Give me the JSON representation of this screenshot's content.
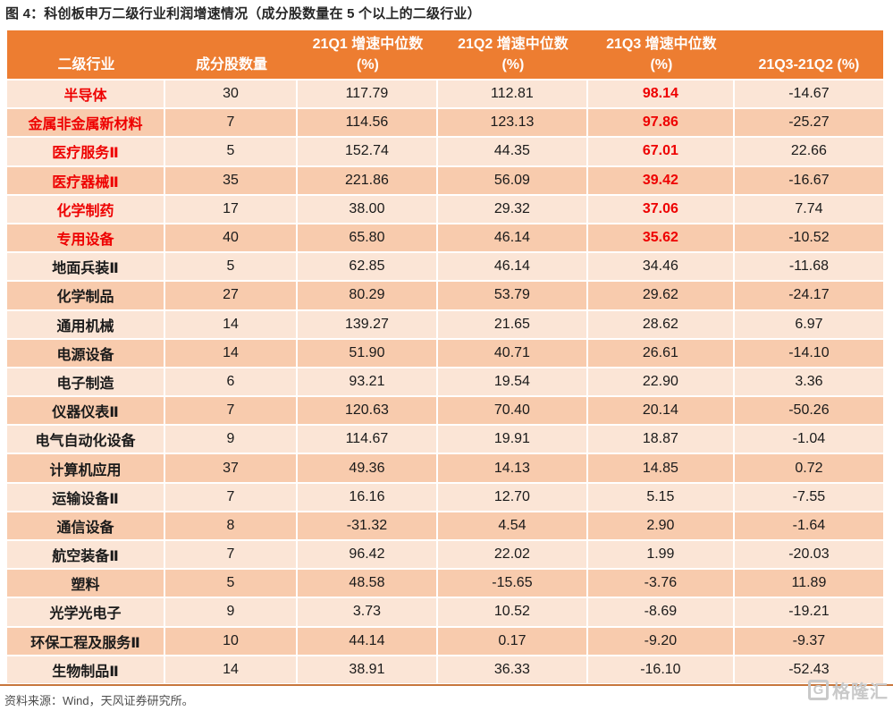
{
  "title": "图 4：科创板申万二级行业利润增速情况（成分股数量在 5 个以上的二级行业）",
  "source_note": "资料来源：Wind，天风证券研究所。",
  "watermark": {
    "logo_letter": "G",
    "text": "格隆汇"
  },
  "colors": {
    "header-bg": "#ED7D31",
    "row-light": "#FBE5D6",
    "row-dark": "#F8CBAD",
    "accent-red": "#EE0000",
    "title-text": "#262626",
    "source-text": "#4D4D4D",
    "rule": "#C8763C",
    "watermark-gray": "#C9C9C9"
  },
  "chart_data": {
    "type": "table",
    "title": "图 4：科创板申万二级行业利润增速情况（成分股数量在 5 个以上的二级行业）",
    "headers": [
      {
        "line1": "",
        "line2": "二级行业"
      },
      {
        "line1": "",
        "line2": "成分股数量"
      },
      {
        "line1": "21Q1 增速中位数",
        "line2": "(%)"
      },
      {
        "line1": "21Q2 增速中位数",
        "line2": "(%)"
      },
      {
        "line1": "21Q3 增速中位数",
        "line2": "(%)"
      },
      {
        "line1": "",
        "line2": "21Q3-21Q2 (%)"
      }
    ],
    "rows": [
      {
        "industry": "半导体",
        "count": "30",
        "q1": "117.79",
        "q2": "112.81",
        "q3": "98.14",
        "diff": "-14.67",
        "highlight": true
      },
      {
        "industry": "金属非金属新材料",
        "count": "7",
        "q1": "114.56",
        "q2": "123.13",
        "q3": "97.86",
        "diff": "-25.27",
        "highlight": true
      },
      {
        "industry": "医疗服务Ⅱ",
        "count": "5",
        "q1": "152.74",
        "q2": "44.35",
        "q3": "67.01",
        "diff": "22.66",
        "highlight": true
      },
      {
        "industry": "医疗器械Ⅱ",
        "count": "35",
        "q1": "221.86",
        "q2": "56.09",
        "q3": "39.42",
        "diff": "-16.67",
        "highlight": true
      },
      {
        "industry": "化学制药",
        "count": "17",
        "q1": "38.00",
        "q2": "29.32",
        "q3": "37.06",
        "diff": "7.74",
        "highlight": true
      },
      {
        "industry": "专用设备",
        "count": "40",
        "q1": "65.80",
        "q2": "46.14",
        "q3": "35.62",
        "diff": "-10.52",
        "highlight": true
      },
      {
        "industry": "地面兵装Ⅱ",
        "count": "5",
        "q1": "62.85",
        "q2": "46.14",
        "q3": "34.46",
        "diff": "-11.68",
        "highlight": false
      },
      {
        "industry": "化学制品",
        "count": "27",
        "q1": "80.29",
        "q2": "53.79",
        "q3": "29.62",
        "diff": "-24.17",
        "highlight": false
      },
      {
        "industry": "通用机械",
        "count": "14",
        "q1": "139.27",
        "q2": "21.65",
        "q3": "28.62",
        "diff": "6.97",
        "highlight": false
      },
      {
        "industry": "电源设备",
        "count": "14",
        "q1": "51.90",
        "q2": "40.71",
        "q3": "26.61",
        "diff": "-14.10",
        "highlight": false
      },
      {
        "industry": "电子制造",
        "count": "6",
        "q1": "93.21",
        "q2": "19.54",
        "q3": "22.90",
        "diff": "3.36",
        "highlight": false
      },
      {
        "industry": "仪器仪表Ⅱ",
        "count": "7",
        "q1": "120.63",
        "q2": "70.40",
        "q3": "20.14",
        "diff": "-50.26",
        "highlight": false
      },
      {
        "industry": "电气自动化设备",
        "count": "9",
        "q1": "114.67",
        "q2": "19.91",
        "q3": "18.87",
        "diff": "-1.04",
        "highlight": false
      },
      {
        "industry": "计算机应用",
        "count": "37",
        "q1": "49.36",
        "q2": "14.13",
        "q3": "14.85",
        "diff": "0.72",
        "highlight": false
      },
      {
        "industry": "运输设备Ⅱ",
        "count": "7",
        "q1": "16.16",
        "q2": "12.70",
        "q3": "5.15",
        "diff": "-7.55",
        "highlight": false
      },
      {
        "industry": "通信设备",
        "count": "8",
        "q1": "-31.32",
        "q2": "4.54",
        "q3": "2.90",
        "diff": "-1.64",
        "highlight": false
      },
      {
        "industry": "航空装备Ⅱ",
        "count": "7",
        "q1": "96.42",
        "q2": "22.02",
        "q3": "1.99",
        "diff": "-20.03",
        "highlight": false
      },
      {
        "industry": "塑料",
        "count": "5",
        "q1": "48.58",
        "q2": "-15.65",
        "q3": "-3.76",
        "diff": "11.89",
        "highlight": false
      },
      {
        "industry": "光学光电子",
        "count": "9",
        "q1": "3.73",
        "q2": "10.52",
        "q3": "-8.69",
        "diff": "-19.21",
        "highlight": false
      },
      {
        "industry": "环保工程及服务Ⅱ",
        "count": "10",
        "q1": "44.14",
        "q2": "0.17",
        "q3": "-9.20",
        "diff": "-9.37",
        "highlight": false
      },
      {
        "industry": "生物制品Ⅱ",
        "count": "14",
        "q1": "38.91",
        "q2": "36.33",
        "q3": "-16.10",
        "diff": "-52.43",
        "highlight": false
      }
    ]
  }
}
